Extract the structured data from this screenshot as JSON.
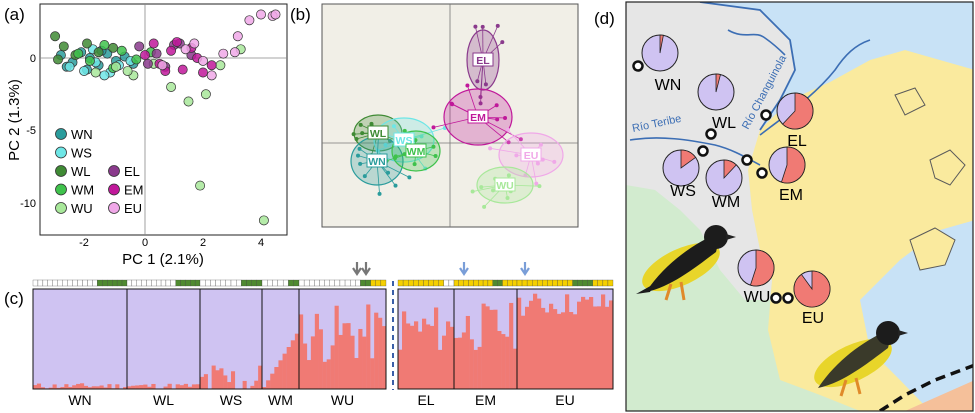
{
  "panels": {
    "a": "(a)",
    "b": "(b)",
    "c": "(c)",
    "d": "(d)"
  },
  "pca": {
    "xlabel": "PC 1 (2.1%)",
    "ylabel": "PC 2 (1.3%)",
    "xticks": [
      "-2",
      "0",
      "2",
      "4"
    ],
    "yticks": [
      "0",
      "-5",
      "-10"
    ],
    "legend_left": [
      "WN",
      "WS",
      "WL",
      "WM",
      "WU"
    ],
    "legend_right": [
      "EL",
      "EM",
      "EU"
    ],
    "colors": {
      "WN": "#2a9c9c",
      "WS": "#6ee6e6",
      "WL": "#3f8a34",
      "WM": "#3fc24c",
      "WU": "#a8e89a",
      "EL": "#8a3a8c",
      "EM": "#c0189a",
      "EU": "#f0a8e8"
    }
  },
  "chart_data": [
    {
      "type": "scatter",
      "xlabel": "PC 1 (2.1%)",
      "ylabel": "PC 2 (1.3%)",
      "xlim": [
        -3.5,
        5.0
      ],
      "ylim": [
        -11.5,
        3.0
      ],
      "series": [
        {
          "name": "WN",
          "x": [
            -2.9,
            -2.5,
            -2.2,
            -1.9,
            -1.6,
            -1.3,
            -1.0,
            -0.7,
            -0.4,
            -2.7,
            -2.0,
            -1.5
          ],
          "y": [
            0.2,
            -0.3,
            0.4,
            0.0,
            -0.5,
            0.3,
            -0.2,
            0.1,
            -0.4,
            -0.6,
            -0.8,
            0.5
          ]
        },
        {
          "name": "WS",
          "x": [
            -2.6,
            -2.1,
            -1.7,
            -1.2,
            -0.9,
            -0.5,
            -1.8,
            -1.4
          ],
          "y": [
            -0.6,
            -0.9,
            -0.3,
            -1.0,
            -0.5,
            -0.2,
            0.6,
            -1.2
          ]
        },
        {
          "name": "WL",
          "x": [
            -3.1,
            -2.8,
            -2.4,
            -2.0,
            -1.6,
            -1.1,
            -3.0
          ],
          "y": [
            1.5,
            0.8,
            0.2,
            1.0,
            0.4,
            0.7,
            -0.1
          ]
        },
        {
          "name": "WM",
          "x": [
            -2.3,
            -1.9,
            -1.4,
            -0.8,
            -0.3,
            0.2,
            -1.1
          ],
          "y": [
            0.3,
            -0.2,
            0.9,
            0.5,
            -0.1,
            0.4,
            -0.7
          ]
        },
        {
          "name": "WU",
          "x": [
            -1.7,
            -1.0,
            -0.4,
            0.3,
            0.9,
            1.5,
            2.1,
            1.9,
            2.6,
            3.3,
            4.1,
            -0.6
          ],
          "y": [
            -1.0,
            -0.6,
            -1.2,
            -0.4,
            -2.0,
            -3.0,
            -2.5,
            -8.8,
            -0.5,
            0.6,
            -11.2,
            -0.9
          ]
        },
        {
          "name": "EL",
          "x": [
            -0.2,
            0.4,
            1.0,
            1.6,
            0.7,
            0.1,
            1.2
          ],
          "y": [
            0.8,
            0.3,
            0.9,
            0.2,
            -0.6,
            -0.4,
            1.0
          ]
        },
        {
          "name": "EM",
          "x": [
            0.0,
            0.5,
            0.9,
            1.3,
            1.8,
            2.3,
            0.3,
            1.1,
            1.6,
            2.0,
            0.7
          ],
          "y": [
            0.2,
            -0.4,
            0.5,
            -0.8,
            0.0,
            -0.5,
            1.0,
            1.1,
            0.7,
            -1.0,
            -0.9
          ]
        },
        {
          "name": "EU",
          "x": [
            0.6,
            1.4,
            2.0,
            2.7,
            3.2,
            3.6,
            4.0,
            4.4,
            4.5,
            3.1,
            2.3,
            1.7
          ],
          "y": [
            -0.5,
            0.6,
            -0.2,
            0.3,
            1.5,
            2.6,
            3.0,
            2.9,
            3.0,
            0.4,
            -1.2,
            1.0
          ]
        }
      ]
    }
  ],
  "dapc": {
    "labels": [
      "WL",
      "WS",
      "WN",
      "WM",
      "EL",
      "EM",
      "EU",
      "WU"
    ]
  },
  "structure": {
    "groups": [
      "WN",
      "WL",
      "WS",
      "WM",
      "WU",
      "EL",
      "EM",
      "EU"
    ]
  },
  "map": {
    "sites": [
      "WN",
      "WL",
      "WS",
      "WM",
      "EL",
      "EM",
      "WU",
      "EU"
    ],
    "rivers": [
      "Río Teribe",
      "Río Changuinola"
    ]
  }
}
